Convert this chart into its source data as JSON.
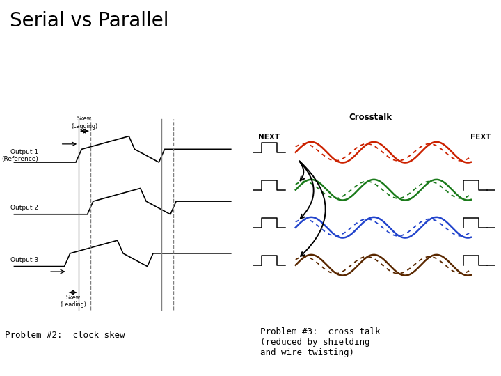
{
  "title": "Serial vs Parallel",
  "title_fontsize": 20,
  "bg_color": "#ffffff",
  "left_label": "Problem #2:  clock skew",
  "right_label": "Problem #3:  cross talk\n(reduced by shielding\nand wire twisting)",
  "crosstalk_title": "Crosstalk",
  "next_label": "NEXT",
  "fext_label": "FEXT",
  "wave_colors": [
    "#cc2200",
    "#1a7a1a",
    "#2244cc",
    "#5a2800"
  ],
  "output1_label": "Output 1\n(Reference)",
  "output2_label": "Output 2",
  "output3_label": "Output 3",
  "skew_lag_label": "Skew\n(Lagging)",
  "skew_lead_label": "Skew\n(Leading)"
}
